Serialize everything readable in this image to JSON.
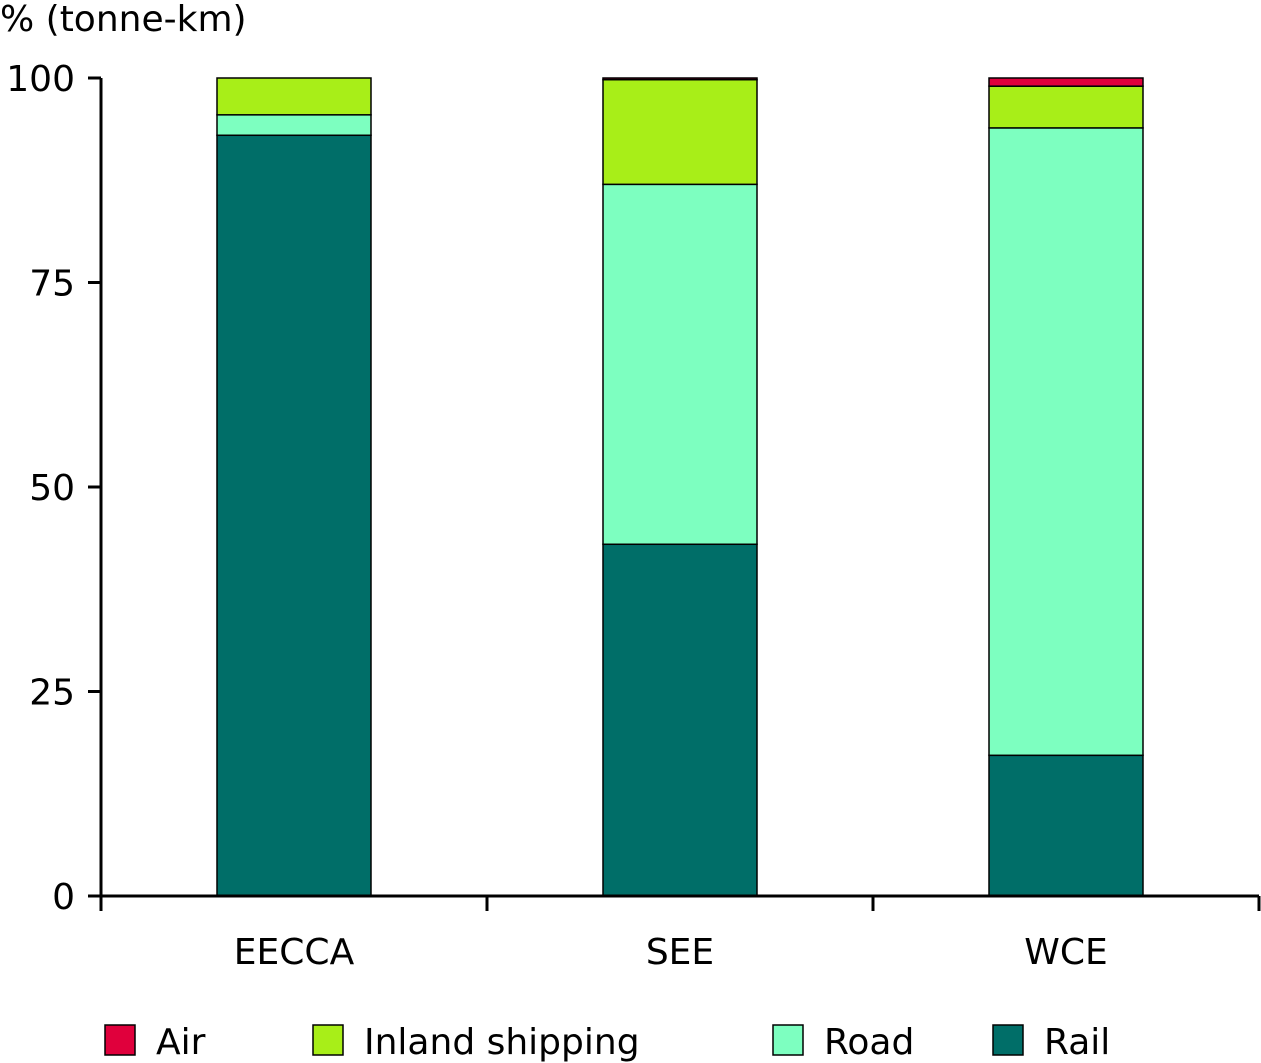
{
  "chart_data": {
    "type": "bar",
    "stacked": true,
    "title": "",
    "ylabel": "% (tonne-km)",
    "xlabel": "",
    "ylim": [
      0,
      100
    ],
    "yticks": [
      0,
      25,
      50,
      75,
      100
    ],
    "grid": false,
    "legend_position": "bottom",
    "categories": [
      "EECCA",
      "SEE",
      "WCE"
    ],
    "series": [
      {
        "name": "Rail",
        "color": "#006E68",
        "values": [
          93.0,
          43.0,
          17.2
        ]
      },
      {
        "name": "Road",
        "color": "#7DFFC0",
        "values": [
          2.5,
          44.0,
          76.7
        ]
      },
      {
        "name": "Inland shipping",
        "color": "#A8EE18",
        "values": [
          4.5,
          12.8,
          5.1
        ]
      },
      {
        "name": "Air",
        "color": "#E0003C",
        "values": [
          0.0,
          0.2,
          1.0
        ]
      }
    ],
    "legend_order": [
      "Air",
      "Inland shipping",
      "Road",
      "Rail"
    ]
  }
}
